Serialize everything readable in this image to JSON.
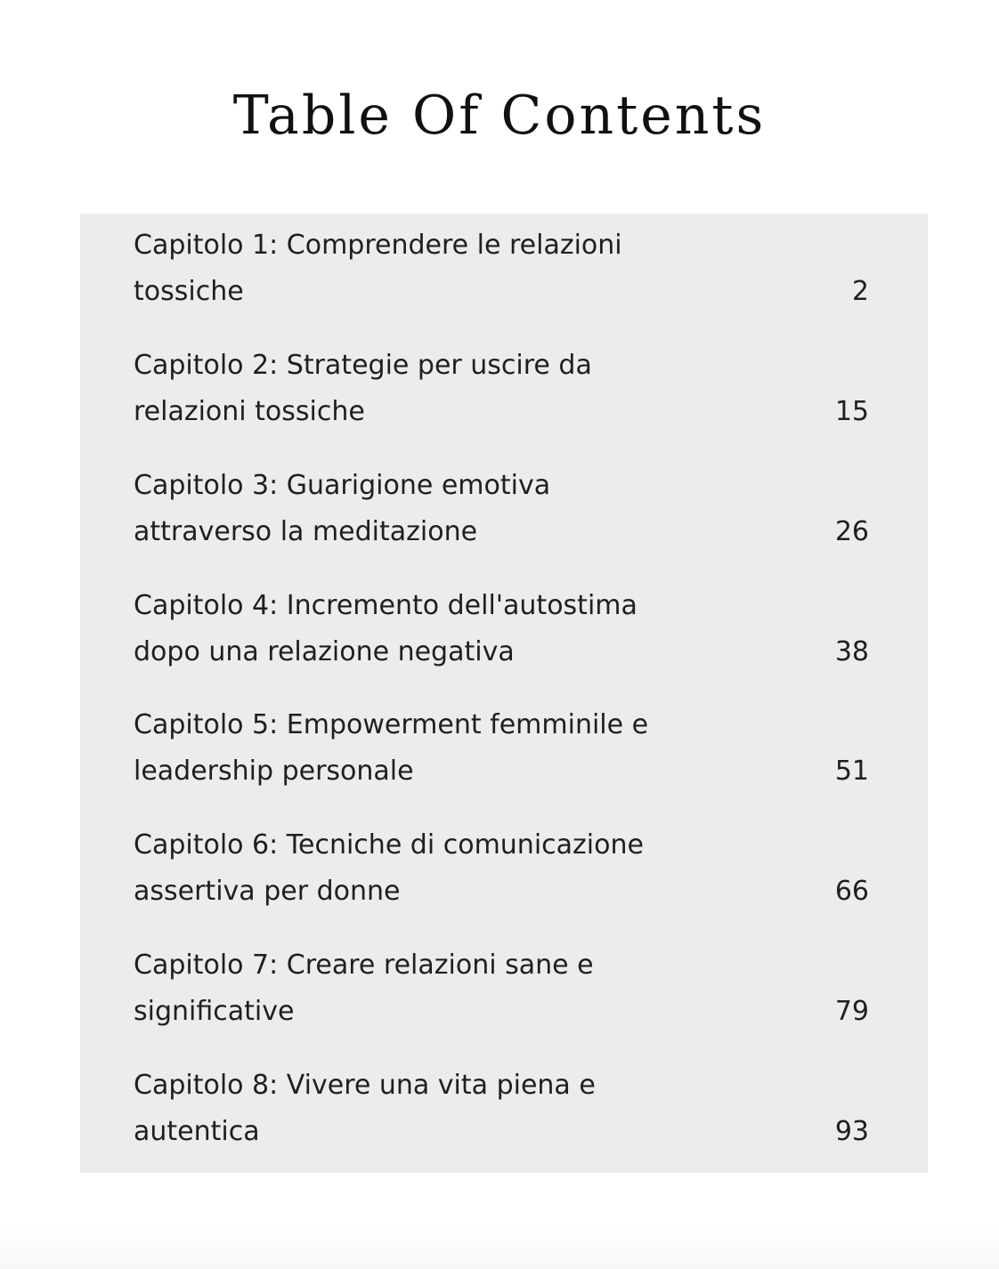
{
  "title": "Table Of Contents",
  "entries": [
    {
      "line1": "Capitolo 1: Comprendere le relazioni",
      "line2": "tossiche",
      "page": "2"
    },
    {
      "line1": "Capitolo 2: Strategie per uscire da",
      "line2": "relazioni tossiche",
      "page": "15"
    },
    {
      "line1": "Capitolo 3: Guarigione emotiva",
      "line2": "attraverso la meditazione",
      "page": "26"
    },
    {
      "line1": "Capitolo 4: Incremento dell'autostima",
      "line2": "dopo una relazione negativa",
      "page": "38"
    },
    {
      "line1": "Capitolo 5: Empowerment femminile e",
      "line2": "leadership personale",
      "page": "51"
    },
    {
      "line1": "Capitolo 6: Tecniche di comunicazione",
      "line2": "assertiva per donne",
      "page": "66"
    },
    {
      "line1": "Capitolo 7: Creare relazioni sane e",
      "line2": "significative",
      "page": "79"
    },
    {
      "line1": "Capitolo 8: Vivere una vita piena e",
      "line2": "autentica",
      "page": "93"
    }
  ]
}
